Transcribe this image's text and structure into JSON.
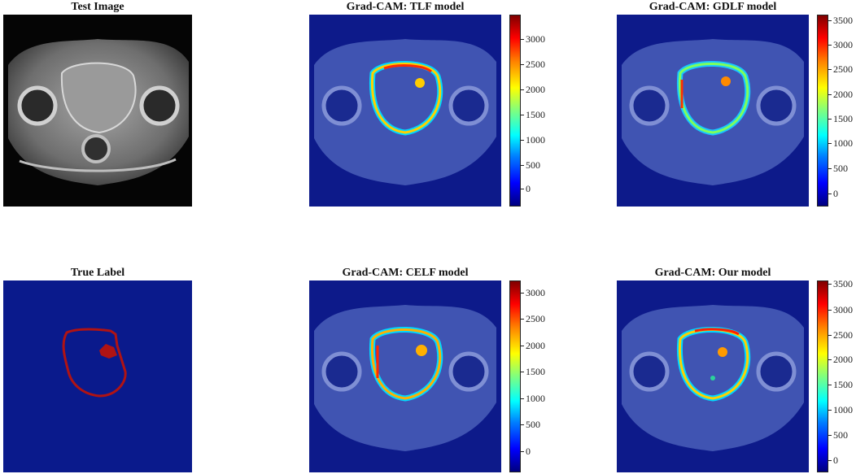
{
  "panels": [
    {
      "title": "Test Image",
      "kind": "mri"
    },
    {
      "title": "Grad-CAM: TLF model",
      "kind": "gradcam"
    },
    {
      "title": "Grad-CAM: GDLF model",
      "kind": "gradcam"
    },
    {
      "title": "True Label",
      "kind": "label"
    },
    {
      "title": "Grad-CAM: CELF model",
      "kind": "gradcam"
    },
    {
      "title": "Grad-CAM: Our model",
      "kind": "gradcam"
    }
  ],
  "colorbars": [
    {
      "panel": "tlf",
      "ticks": [
        "3000",
        "2500",
        "2000",
        "1500",
        "1000",
        "500",
        "0"
      ]
    },
    {
      "panel": "gdlf",
      "ticks": [
        "3500",
        "3000",
        "2500",
        "2000",
        "1500",
        "1000",
        "500",
        "0"
      ]
    },
    {
      "panel": "celf",
      "ticks": [
        "3000",
        "2500",
        "2000",
        "1500",
        "1000",
        "500",
        "0"
      ]
    },
    {
      "panel": "ours",
      "ticks": [
        "3500",
        "3000",
        "2500",
        "2000",
        "1500",
        "1000",
        "500",
        "0"
      ]
    }
  ],
  "colors": {
    "background": "#ffffff",
    "overlay_blue": "#0a1f8f",
    "label_background": "#0a1a8c",
    "label_contour": "#b01313"
  }
}
